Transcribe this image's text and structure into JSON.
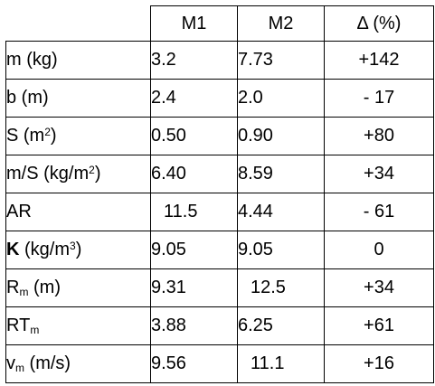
{
  "header": {
    "col1": "M1",
    "col2": "M2",
    "col3": "Δ (%)"
  },
  "rows": [
    {
      "label_main": "m (kg)",
      "m1": "3.2",
      "m2": "7.73",
      "delta": "+142"
    },
    {
      "label_main": "b (m)",
      "m1": "2.4",
      "m2": "2.0",
      "delta": "- 17"
    },
    {
      "label_pre": "S (m",
      "label_sup": "2",
      "label_post": ")",
      "m1": "0.50",
      "m2": "0.90",
      "delta": "+80"
    },
    {
      "label_pre": "m/S (kg/m",
      "label_sup": "2",
      "label_post": ")",
      "m1": "6.40",
      "m2": "8.59",
      "delta": "+34"
    },
    {
      "label_main": "AR",
      "m1": "11.5",
      "m2": "4.44",
      "delta": "- 61"
    },
    {
      "label_bold": "K",
      "label_pre": " (kg/m",
      "label_sup": "3",
      "label_post": ")",
      "m1": "9.05",
      "m2": "9.05",
      "delta": "0"
    },
    {
      "label_pre": "R",
      "label_sub": "m",
      "label_post": " (m)",
      "m1": "9.31",
      "m2": "12.5",
      "delta": "+34"
    },
    {
      "label_pre": "RT",
      "label_sub": "m",
      "label_post": "",
      "m1": "3.88",
      "m2": "6.25",
      "delta": "+61"
    },
    {
      "label_pre": "v",
      "label_sub": "m",
      "label_post": " (m/s)",
      "m1": "9.56",
      "m2": "11.1",
      "delta": "+16"
    }
  ]
}
